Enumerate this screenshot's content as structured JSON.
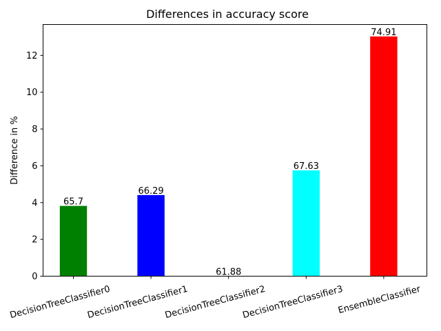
{
  "chart_data": {
    "type": "bar",
    "title": "Differences in accuracy score",
    "xlabel": "",
    "ylabel": "Difference in %",
    "categories": [
      "DecisionTreeClassifier0",
      "DecisionTreeClassifier1",
      "DecisionTreeClassifier2",
      "DecisionTreeClassifier3",
      "EnsembleClassifier"
    ],
    "values": [
      3.82,
      4.41,
      0.0,
      5.75,
      13.03
    ],
    "bar_labels": [
      "65.7",
      "66.29",
      "61.88",
      "67.63",
      "74.91"
    ],
    "colors": [
      "#008000",
      "#0000ff",
      "#ffffff",
      "#00ffff",
      "#ff0000"
    ],
    "ylim": [
      0,
      13.68
    ],
    "yticks": [
      0,
      2,
      4,
      6,
      8,
      10,
      12
    ],
    "grid": false,
    "legend": "none"
  }
}
